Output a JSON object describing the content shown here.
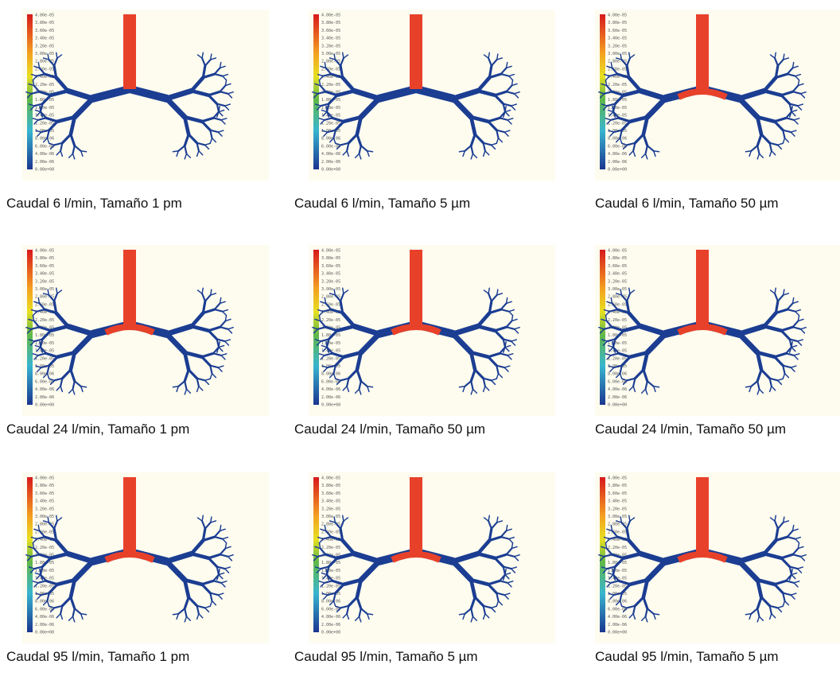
{
  "colorbar_labels": [
    "4.00e-05",
    "3.80e-05",
    "3.60e-05",
    "3.40e-05",
    "3.20e-05",
    "3.00e-05",
    "2.80e-05",
    "2.60e-05",
    "2.40e-05",
    "2.20e-05",
    "2.00e-05",
    "1.80e-05",
    "1.60e-05",
    "1.40e-05",
    "1.20e-05",
    "1.00e-05",
    "8.00e-06",
    "6.00e-06",
    "4.00e-06",
    "2.00e-06",
    "0.00e+00"
  ],
  "panels": [
    {
      "caption": "Caudal 6 l/min, Tamaño 1 pm"
    },
    {
      "caption": "Caudal 6 l/min, Tamaño 5 µm"
    },
    {
      "caption": "Caudal 6 l/min, Tamaño 50 µm"
    },
    {
      "caption": "Caudal 24 l/min, Tamaño 1 pm"
    },
    {
      "caption": "Caudal 24 l/min, Tamaño 50 µm"
    },
    {
      "caption": "Caudal 24 l/min, Tamaño 50 µm"
    },
    {
      "caption": "Caudal 95 l/min, Tamaño 1 pm"
    },
    {
      "caption": "Caudal 95 l/min, Tamaño 5 µm"
    },
    {
      "caption": "Caudal 95 l/min, Tamaño 5 µm"
    }
  ]
}
